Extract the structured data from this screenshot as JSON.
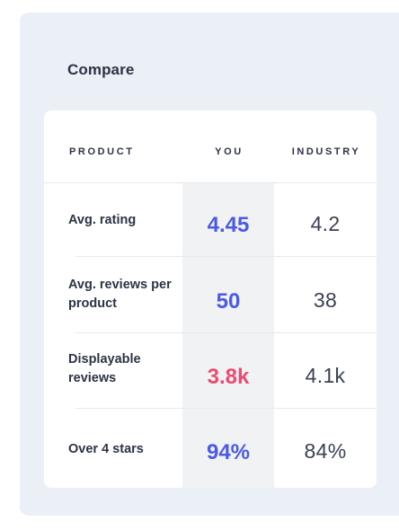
{
  "panel": {
    "title": "Compare"
  },
  "table": {
    "headers": {
      "product": "PRODUCT",
      "you": "YOU",
      "industry": "INDUSTRY"
    },
    "rows": [
      {
        "label": "Avg. rating",
        "you": "4.45",
        "industry": "4.2",
        "you_status": "neutral"
      },
      {
        "label": "Avg. reviews per product",
        "you": "50",
        "industry": "38",
        "you_status": "neutral"
      },
      {
        "label": "Displayable reviews",
        "you": "3.8k",
        "industry": "4.1k",
        "you_status": "below"
      },
      {
        "label": "Over 4 stars",
        "you": "94%",
        "industry": "84%",
        "you_status": "neutral"
      }
    ]
  },
  "colors": {
    "panel_bg": "#ebeff6",
    "you_neutral": "#4a5ae8",
    "you_below": "#ee4a72",
    "text_dark": "#2c3344"
  }
}
